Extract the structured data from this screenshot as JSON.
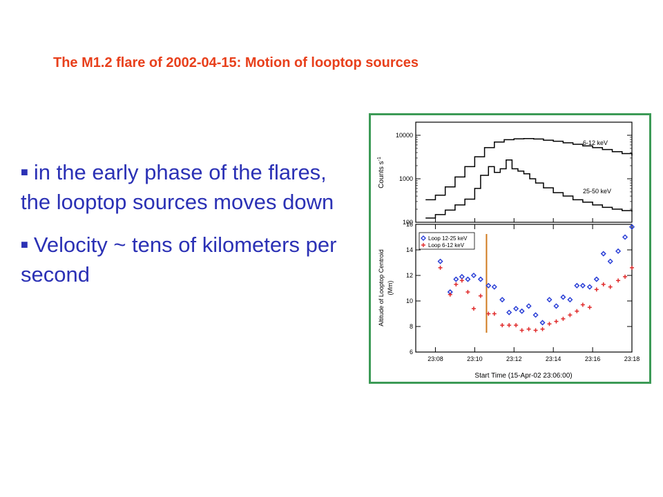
{
  "slide": {
    "title": "The M1.2 flare of 2002-04-15:  Motion of looptop sources",
    "bullets": [
      "in the early phase of the flares,  the looptop sources moves down",
      "Velocity ~ tens of kilometers per second"
    ],
    "colors": {
      "title": "#e8401c",
      "text": "#2b31b5",
      "frame": "#3c9a56"
    }
  },
  "chart_data": [
    {
      "type": "line",
      "ylabel": "Counts s",
      "ylabel_superscript": "-1",
      "yscale": "log",
      "ylim": [
        100,
        20000
      ],
      "yticks": [
        "100",
        "1000",
        "10000"
      ],
      "xlim": [
        7.0,
        18.0
      ],
      "series": [
        {
          "name": "6-12 keV",
          "x": [
            7.5,
            8.0,
            8.5,
            9.0,
            9.5,
            10.0,
            10.5,
            11.0,
            11.5,
            12.0,
            12.5,
            13.0,
            13.5,
            14.0,
            14.5,
            15.0,
            15.5,
            16.0,
            16.5,
            17.0,
            17.5,
            18.0
          ],
          "y": [
            330,
            420,
            650,
            1100,
            1900,
            3200,
            5200,
            7000,
            7900,
            8300,
            8400,
            8200,
            7700,
            7300,
            6700,
            6200,
            5700,
            5200,
            4700,
            4200,
            3800,
            3400
          ]
        },
        {
          "name": "25-50 keV",
          "x": [
            7.5,
            8.0,
            8.5,
            9.0,
            9.5,
            10.0,
            10.3,
            10.7,
            11.0,
            11.3,
            11.6,
            11.9,
            12.2,
            12.5,
            12.8,
            13.1,
            13.5,
            14.0,
            14.5,
            15.0,
            15.5,
            16.0,
            16.5,
            17.0,
            17.5,
            18.0
          ],
          "y": [
            125,
            150,
            190,
            250,
            340,
            600,
            1200,
            1900,
            1400,
            1700,
            2700,
            1700,
            1500,
            1300,
            1000,
            800,
            620,
            480,
            400,
            330,
            290,
            250,
            220,
            200,
            185,
            175
          ]
        }
      ]
    },
    {
      "type": "scatter",
      "ylabel": "Altitude of Looptop Centroid",
      "ylabel_units": "(Mm)",
      "xlabel": "Start Time (15-Apr-02 23:06:00)",
      "xlim": [
        7.0,
        18.0
      ],
      "ylim": [
        6,
        16
      ],
      "xticks": [
        {
          "value": 8,
          "label": "23:08"
        },
        {
          "value": 10,
          "label": "23:10"
        },
        {
          "value": 12,
          "label": "23:12"
        },
        {
          "value": 14,
          "label": "23:14"
        },
        {
          "value": 16,
          "label": "23:16"
        },
        {
          "value": 18,
          "label": "23:18"
        }
      ],
      "yticks": [
        "6",
        "8",
        "10",
        "12",
        "14",
        "16"
      ],
      "vertical_line": {
        "x": 10.6,
        "color": "#d07a1e"
      },
      "series": [
        {
          "name": "Loop 12-25 keV",
          "color": "#2a3fd6",
          "marker": "diamond",
          "x": [
            8.25,
            8.75,
            9.05,
            9.35,
            9.65,
            9.95,
            10.3,
            10.7,
            11.0,
            11.4,
            11.75,
            12.1,
            12.4,
            12.75,
            13.1,
            13.45,
            13.8,
            14.15,
            14.5,
            14.85,
            15.2,
            15.5,
            15.85,
            16.2,
            16.55,
            16.9,
            17.3,
            17.65,
            18.0
          ],
          "y": [
            13.1,
            10.7,
            11.7,
            11.9,
            11.7,
            12.0,
            11.7,
            11.2,
            11.1,
            10.1,
            9.1,
            9.4,
            9.2,
            9.6,
            8.9,
            8.3,
            10.1,
            9.6,
            10.3,
            10.1,
            11.2,
            11.2,
            11.1,
            11.7,
            13.7,
            13.1,
            13.9,
            15.0,
            15.8
          ]
        },
        {
          "name": "Loop 6-12 keV",
          "color": "#e02a2a",
          "marker": "plus",
          "x": [
            8.25,
            8.75,
            9.05,
            9.35,
            9.65,
            9.95,
            10.3,
            10.7,
            11.0,
            11.4,
            11.75,
            12.1,
            12.4,
            12.75,
            13.1,
            13.45,
            13.8,
            14.15,
            14.5,
            14.85,
            15.2,
            15.5,
            15.85,
            16.2,
            16.55,
            16.9,
            17.3,
            17.65,
            18.0
          ],
          "y": [
            12.6,
            10.5,
            11.3,
            11.6,
            10.7,
            9.4,
            10.4,
            9.0,
            9.0,
            8.1,
            8.1,
            8.1,
            7.7,
            7.8,
            7.7,
            7.8,
            8.2,
            8.4,
            8.6,
            8.9,
            9.2,
            9.7,
            9.5,
            10.9,
            11.3,
            11.1,
            11.6,
            11.9,
            12.6
          ]
        }
      ]
    }
  ]
}
